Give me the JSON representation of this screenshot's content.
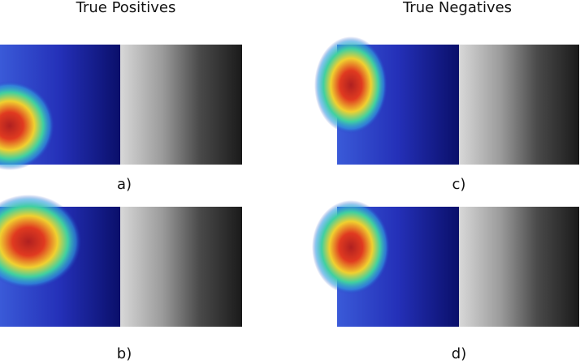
{
  "columns": [
    {
      "title": "True Positives",
      "panels": [
        "a)",
        "b)"
      ]
    },
    {
      "title": "True Negatives",
      "panels": [
        "c)",
        "d)"
      ]
    }
  ]
}
